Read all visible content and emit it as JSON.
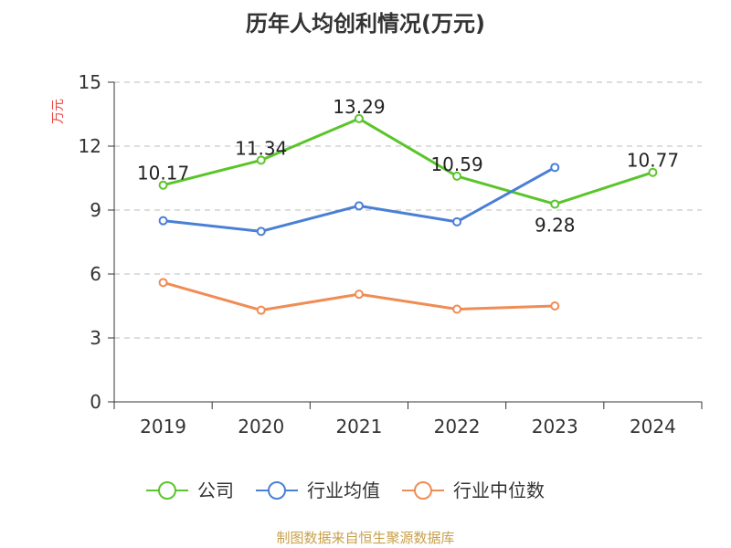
{
  "chart_data": {
    "type": "line",
    "title": "历年人均创利情况(万元)",
    "ylabel": "万元",
    "xlabel": "",
    "categories": [
      "2019",
      "2020",
      "2021",
      "2022",
      "2023",
      "2024"
    ],
    "ylim": [
      0,
      15
    ],
    "yticks": [
      0,
      3,
      6,
      9,
      12,
      15
    ],
    "ytick_labels": [
      "0",
      "3",
      "6",
      "9",
      "12",
      "15"
    ],
    "grid": "horizontal dashed",
    "legend_position": "bottom-center",
    "series": [
      {
        "name": "公司",
        "color": "#5ac52a",
        "values": [
          10.17,
          11.34,
          13.29,
          10.59,
          9.28,
          10.77
        ],
        "data_labels": [
          "10.17",
          "11.34",
          "13.29",
          "10.59",
          "9.28",
          "10.77"
        ]
      },
      {
        "name": "行业均值",
        "color": "#4a7fd6",
        "values": [
          8.5,
          8.0,
          9.2,
          8.45,
          11.0,
          null
        ]
      },
      {
        "name": "行业中位数",
        "color": "#f08c55",
        "values": [
          5.6,
          4.3,
          5.05,
          4.35,
          4.5,
          null
        ]
      }
    ]
  },
  "source_text": "制图数据来自恒生聚源数据库",
  "colors": {
    "ylabel": "#e8473f",
    "source": "#c8a04a",
    "axis": "#333333",
    "grid": "#bbbbbb"
  }
}
